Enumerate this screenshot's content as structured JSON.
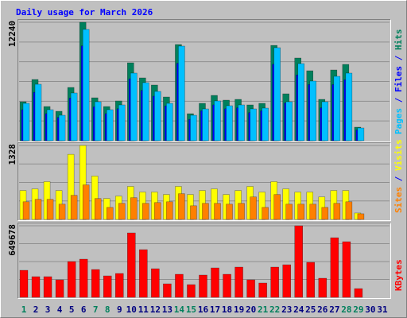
{
  "title": "Daily usage for March 2026",
  "legend_separator": " / ",
  "chart_data": [
    {
      "type": "bar",
      "ylim": [
        0,
        12240
      ],
      "yticks": [
        12240
      ],
      "series": [
        {
          "name": "Pages",
          "color": "#00c0ff",
          "values": [
            3861,
            5833,
            3204,
            2629,
            4929,
            11501,
            4025,
            3204,
            3697,
            6983,
            5997,
            5093,
            3861,
            9776,
            2629,
            3286,
            4108,
            3615,
            3697,
            3286,
            3368,
            9612,
            4025,
            7969,
            6161,
            4025,
            6654,
            6983,
            1314,
            0,
            0
          ]
        },
        {
          "name": "Files",
          "color": "#0000ff",
          "values": [
            3200,
            5000,
            2800,
            2400,
            4400,
            9800,
            3500,
            2800,
            3300,
            6400,
            5200,
            4600,
            3600,
            8000,
            2200,
            3100,
            3700,
            3300,
            3400,
            2900,
            3100,
            7900,
            3900,
            6800,
            5800,
            3400,
            5800,
            6300,
            1100,
            0,
            0
          ]
        },
        {
          "name": "Hits",
          "color": "#00805c",
          "values": [
            4025,
            6326,
            3532,
            3040,
            5504,
            12240,
            4436,
            3532,
            4108,
            8051,
            6490,
            5751,
            4518,
            9940,
            2793,
            3861,
            4683,
            4190,
            4272,
            3697,
            3861,
            9850,
            4847,
            8544,
            7229,
            4272,
            7311,
            7886,
            1397,
            0,
            0
          ]
        }
      ]
    },
    {
      "type": "bar",
      "ylim": [
        0,
        1328
      ],
      "yticks": [
        1328
      ],
      "series": [
        {
          "name": "Sites",
          "color": "#ff8000",
          "values": [
            317,
            361,
            361,
            274,
            433,
            620,
            375,
            216,
            289,
            390,
            289,
            303,
            317,
            462,
            245,
            289,
            289,
            274,
            289,
            404,
            216,
            447,
            274,
            274,
            274,
            216,
            289,
            317,
            101,
            0,
            0
          ]
        },
        {
          "name": "Visits",
          "color": "#ffff00",
          "values": [
            519,
            548,
            678,
            519,
            1169,
            1328,
            779,
            375,
            418,
            592,
            491,
            491,
            447,
            592,
            447,
            519,
            548,
            447,
            519,
            592,
            491,
            678,
            548,
            491,
            491,
            404,
            519,
            519,
            115,
            0,
            0
          ]
        }
      ]
    },
    {
      "type": "bar",
      "ylim": [
        0,
        649678
      ],
      "yticks": [
        649678
      ],
      "series": [
        {
          "name": "KBytes",
          "color": "#ff0000",
          "values": [
            245432,
            187684,
            187684,
            158809,
            324837,
            346493,
            252651,
            194902,
            216558,
            584710,
            433116,
            259870,
            122716,
            209339,
            115498,
            202121,
            267088,
            209339,
            274307,
            158809,
            129935,
            274307,
            295963,
            649678,
            317618,
            173246,
            541395,
            505302,
            79405,
            0,
            0
          ]
        }
      ],
      "categories": [
        "1",
        "2",
        "3",
        "4",
        "5",
        "6",
        "7",
        "8",
        "9",
        "10",
        "11",
        "12",
        "13",
        "14",
        "15",
        "16",
        "17",
        "18",
        "19",
        "20",
        "21",
        "22",
        "23",
        "24",
        "25",
        "26",
        "27",
        "28",
        "29",
        "30",
        "31"
      ],
      "category_colors": [
        "#00805c",
        "#000080",
        "#000080",
        "#000080",
        "#000080",
        "#000080",
        "#00805c",
        "#00805c",
        "#000080",
        "#000080",
        "#000080",
        "#000080",
        "#000080",
        "#00805c",
        "#00805c",
        "#000080",
        "#000080",
        "#000080",
        "#000080",
        "#000080",
        "#00805c",
        "#00805c",
        "#000080",
        "#000080",
        "#000080",
        "#000080",
        "#000080",
        "#00805c",
        "#00805c",
        "#000080",
        "#000080"
      ]
    }
  ]
}
